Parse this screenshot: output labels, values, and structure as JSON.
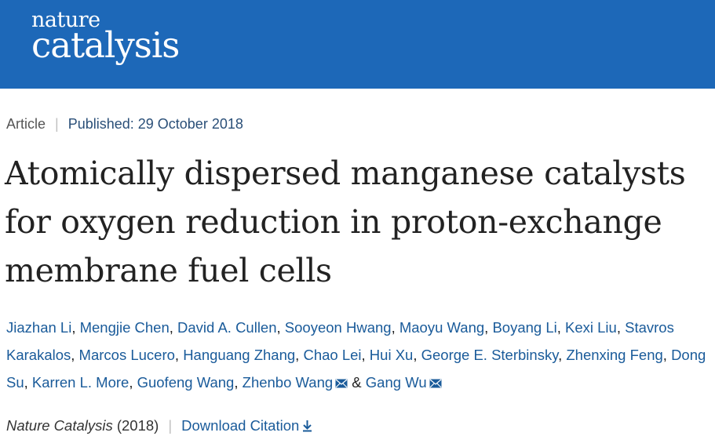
{
  "header": {
    "logo_line1": "nature",
    "logo_line2": "catalysis",
    "brand_color": "#1d68b8"
  },
  "meta": {
    "article_type": "Article",
    "published": "Published: 29 October 2018"
  },
  "title": {
    "line1": "Atomically dispersed manganese catalysts",
    "line2": "for oxygen reduction in proton-exchange",
    "line3": "membrane fuel cells"
  },
  "authors": [
    {
      "name": "Jiazhan Li",
      "email": false
    },
    {
      "name": "Mengjie Chen",
      "email": false
    },
    {
      "name": "David A. Cullen",
      "email": false
    },
    {
      "name": "Sooyeon Hwang",
      "email": false
    },
    {
      "name": "Maoyu Wang",
      "email": false
    },
    {
      "name": "Boyang Li",
      "email": false
    },
    {
      "name": "Kexi Liu",
      "email": false
    },
    {
      "name": "Stavros Karakalos",
      "email": false
    },
    {
      "name": "Marcos Lucero",
      "email": false
    },
    {
      "name": "Hanguang Zhang",
      "email": false
    },
    {
      "name": "Chao Lei",
      "email": false
    },
    {
      "name": "Hui Xu",
      "email": false
    },
    {
      "name": "George E. Sterbinsky",
      "email": false
    },
    {
      "name": "Zhenxing Feng",
      "email": false
    },
    {
      "name": "Dong Su",
      "email": false
    },
    {
      "name": "Karren L. More",
      "email": false
    },
    {
      "name": "Guofeng Wang",
      "email": false
    },
    {
      "name": "Zhenbo Wang",
      "email": true
    },
    {
      "name": "Gang Wu",
      "email": true
    }
  ],
  "footer": {
    "journal": "Nature Catalysis",
    "year": "(2018)",
    "download_citation": "Download Citation",
    "link_color": "#1a5b9a"
  },
  "icons": {
    "email": "envelope-icon",
    "download": "download-arrow-icon"
  }
}
